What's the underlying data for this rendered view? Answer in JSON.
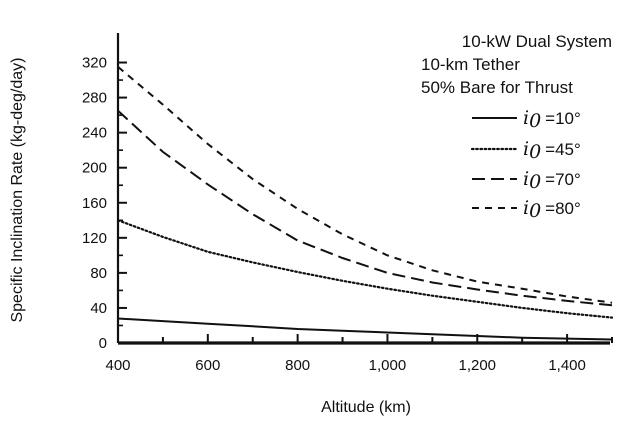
{
  "chart_data": {
    "type": "line",
    "xlabel": "Altitude (km)",
    "ylabel": "Specific Inclination Rate (kg-deg/day)",
    "xlim": [
      400,
      1500
    ],
    "ylim": [
      0,
      340
    ],
    "x_ticks": [
      400,
      600,
      800,
      1000,
      1200,
      1400
    ],
    "x_tick_labels": [
      "400",
      "600",
      "800",
      "1,000",
      "1,200",
      "1,400"
    ],
    "y_ticks": [
      0,
      40,
      80,
      120,
      160,
      200,
      240,
      280,
      320
    ],
    "y_tick_labels": [
      "0",
      "40",
      "80",
      "120",
      "160",
      "200",
      "240",
      "280",
      "320"
    ],
    "annotations": [
      "10-kW Dual System",
      "10-km Tether",
      "50% Bare for Thrust"
    ],
    "legend_position": "top-right",
    "series": [
      {
        "name": "i0 = 10°",
        "legend_symbol": "i",
        "legend_subscript": "0",
        "legend_value": "=10°",
        "style": "solid",
        "x": [
          400,
          500,
          600,
          700,
          800,
          900,
          1000,
          1100,
          1200,
          1300,
          1400,
          1500
        ],
        "values": [
          28,
          25,
          22,
          19,
          16,
          14,
          12,
          10,
          8,
          6,
          5,
          4
        ]
      },
      {
        "name": "i0 = 45°",
        "legend_symbol": "i",
        "legend_subscript": "0",
        "legend_value": "=45°",
        "style": "dotted",
        "x": [
          400,
          500,
          600,
          700,
          800,
          900,
          1000,
          1100,
          1200,
          1300,
          1400,
          1500
        ],
        "values": [
          140,
          121,
          104,
          92,
          81,
          71,
          62,
          54,
          47,
          40,
          34,
          29
        ]
      },
      {
        "name": "i0 = 70°",
        "legend_symbol": "i",
        "legend_subscript": "0",
        "legend_value": "=70°",
        "style": "long-dash",
        "x": [
          400,
          500,
          600,
          700,
          800,
          900,
          1000,
          1100,
          1200,
          1300,
          1400,
          1500
        ],
        "values": [
          265,
          218,
          181,
          147,
          117,
          97,
          80,
          69,
          61,
          54,
          48,
          43
        ]
      },
      {
        "name": "i0 = 80°",
        "legend_symbol": "i",
        "legend_subscript": "0",
        "legend_value": "=80°",
        "style": "short-dash",
        "x": [
          400,
          500,
          600,
          700,
          800,
          900,
          1000,
          1100,
          1200,
          1300,
          1400,
          1500
        ],
        "values": [
          315,
          272,
          227,
          187,
          153,
          124,
          100,
          83,
          70,
          62,
          53,
          46
        ]
      }
    ]
  }
}
